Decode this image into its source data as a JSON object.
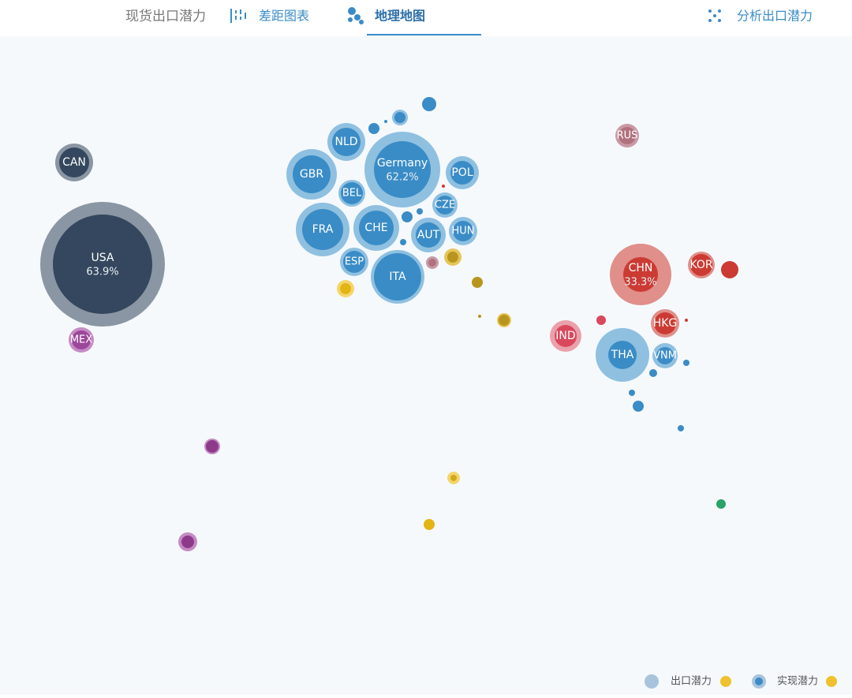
{
  "tabs": [
    {
      "label": "现货出口潜力"
    },
    {
      "label": "差距图表"
    },
    {
      "label": "地理地图"
    },
    {
      "label": "分析出口潜力"
    }
  ],
  "bubbles": [
    {
      "label": "USA",
      "percent": "63.9%"
    },
    {
      "label": "Germany",
      "percent": "62.2%"
    },
    {
      "label": "CHN",
      "percent": "33.3%"
    },
    {
      "label": "CAN"
    },
    {
      "label": "MEX"
    },
    {
      "label": "NLD"
    },
    {
      "label": "GBR"
    },
    {
      "label": "BEL"
    },
    {
      "label": "FRA"
    },
    {
      "label": "CHE"
    },
    {
      "label": "ESP"
    },
    {
      "label": "ITA"
    },
    {
      "label": "POL"
    },
    {
      "label": "CZE"
    },
    {
      "label": "AUT"
    },
    {
      "label": "HUN"
    },
    {
      "label": "RUS"
    },
    {
      "label": "KOR"
    },
    {
      "label": "HKG"
    },
    {
      "label": "IND"
    },
    {
      "label": "THA"
    },
    {
      "label": "VNM"
    }
  ],
  "legend": [
    {
      "label": "出口潜力"
    },
    {
      "label": "实现潜力"
    }
  ]
}
